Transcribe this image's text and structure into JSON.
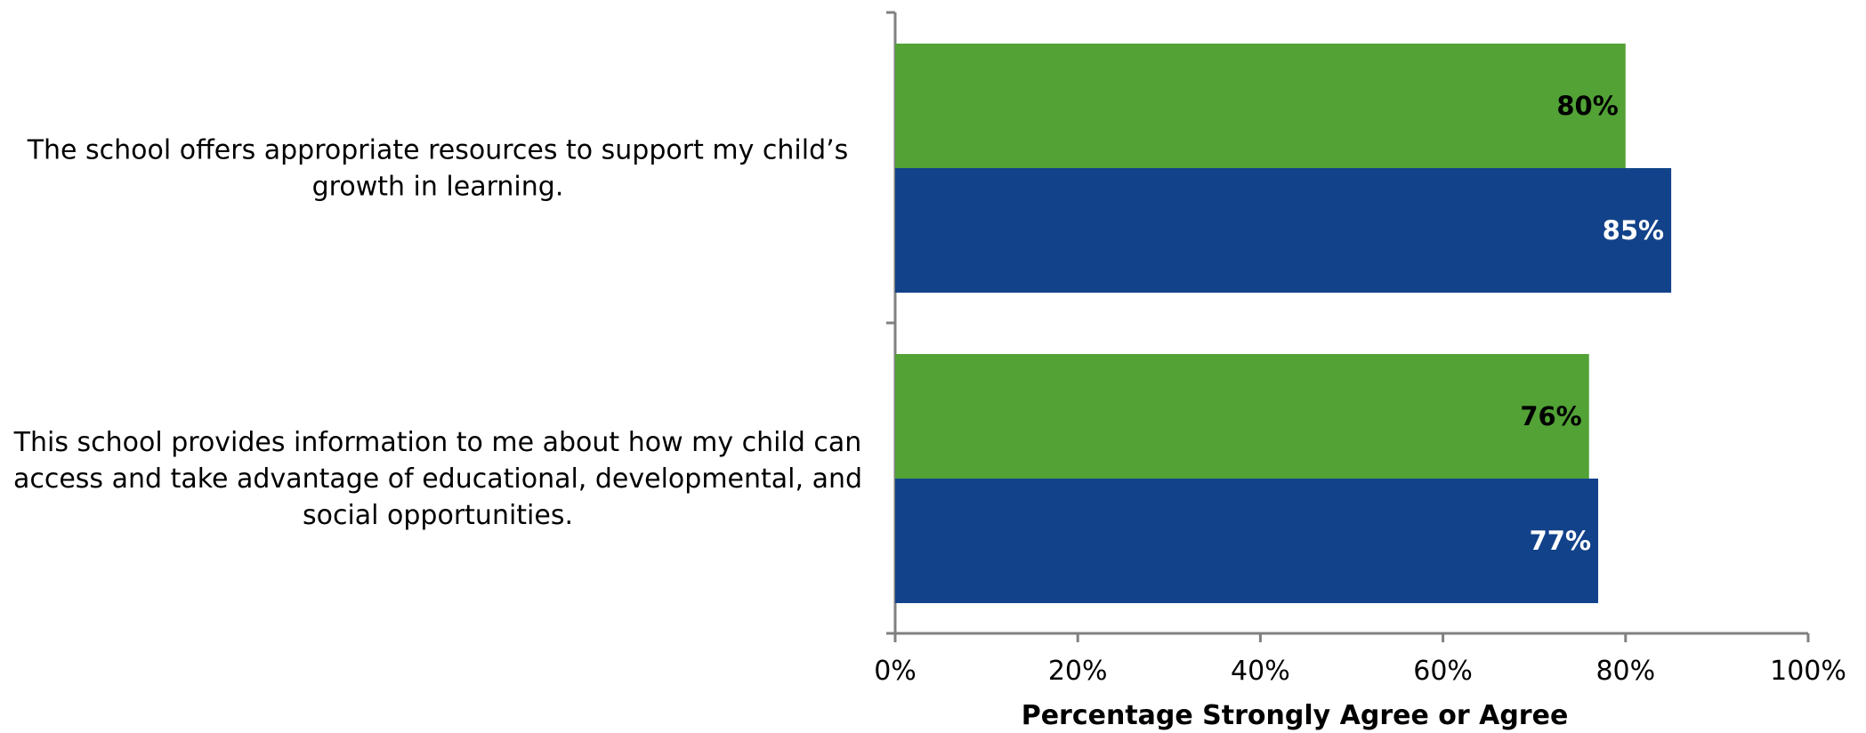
{
  "chart_data": {
    "type": "bar",
    "orientation": "horizontal",
    "categories": [
      [
        "The school offers appropriate resources to support my child’s",
        "growth in learning."
      ],
      [
        "This school provides information to me about how my child can",
        "access and take advantage of educational, developmental, and",
        "social opportunities."
      ]
    ],
    "series": [
      {
        "values": [
          80,
          76
        ],
        "labels": [
          "80%",
          "76%"
        ],
        "color": "#52A236",
        "label_color": "#000000"
      },
      {
        "values": [
          85,
          77
        ],
        "labels": [
          "85%",
          "77%"
        ],
        "color": "#12428A",
        "label_color": "#FFFFFF"
      }
    ],
    "xlim": [
      0,
      100
    ],
    "xticks": [
      0,
      20,
      40,
      60,
      80,
      100
    ],
    "xtick_labels": [
      "0%",
      "20%",
      "40%",
      "60%",
      "80%",
      "100%"
    ],
    "xlabel": "Percentage Strongly Agree or Agree",
    "grid": false,
    "legend": "none",
    "axis_color": "#808080"
  }
}
